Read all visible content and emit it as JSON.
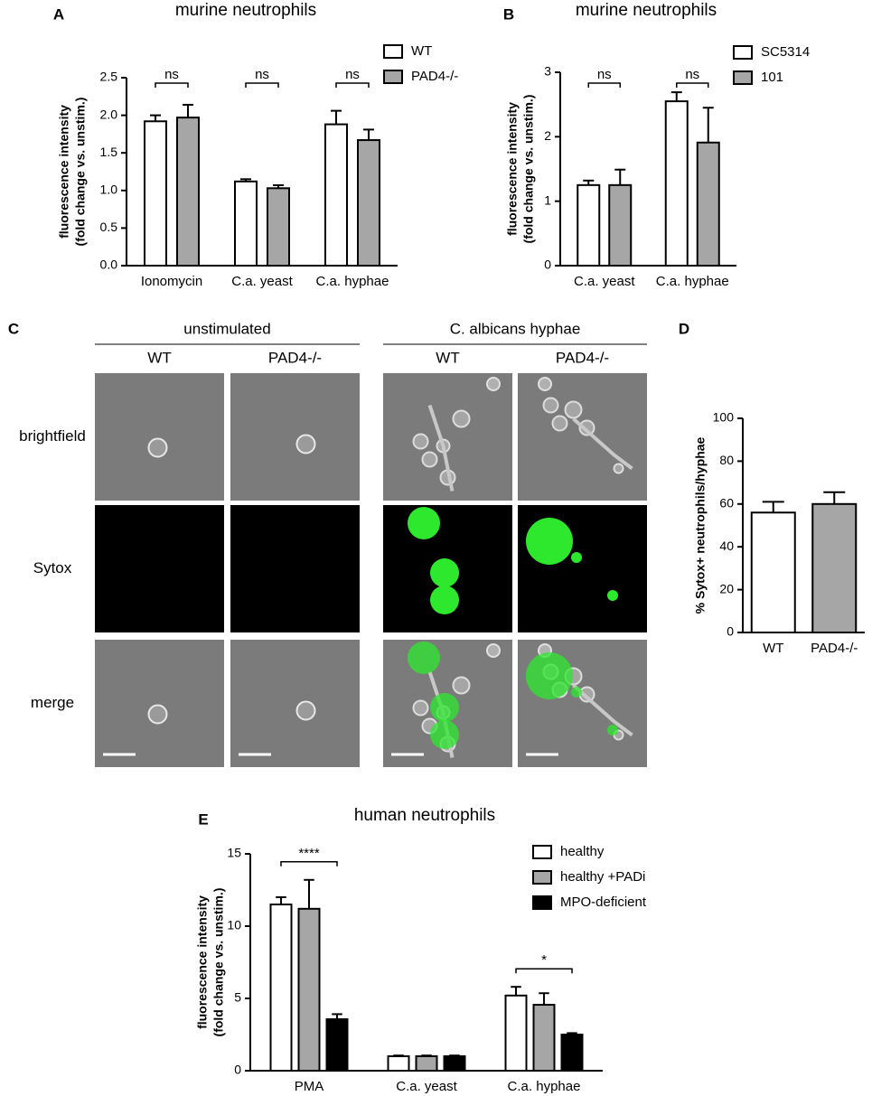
{
  "chart_data": [
    {
      "type": "bar",
      "panel": "A",
      "title": "murine neutrophils",
      "ylabel": [
        "fluorescence intensity",
        "(fold change vs. unstim.)"
      ],
      "categories": [
        "Ionomycin",
        "C.a. yeast",
        "C.a. hyphae"
      ],
      "series": [
        {
          "name": "WT",
          "color": "#ffffff",
          "values": [
            1.92,
            1.12,
            1.88
          ],
          "errors": [
            0.08,
            0.03,
            0.18
          ]
        },
        {
          "name": "PAD4-/-",
          "color": "#a6a6a6",
          "values": [
            1.97,
            1.03,
            1.67
          ],
          "errors": [
            0.17,
            0.04,
            0.14
          ]
        }
      ],
      "significance": [
        "ns",
        "ns",
        "ns"
      ],
      "ylim": [
        0,
        2.5
      ],
      "yticks": [
        {
          "value": 0,
          "label": "0.0"
        },
        0.5,
        {
          "value": 1,
          "label": "1.0"
        },
        1.5,
        {
          "value": 2,
          "label": "2.0"
        },
        2.5
      ]
    },
    {
      "type": "bar",
      "panel": "B",
      "title": "murine neutrophils",
      "ylabel": [
        "fluorescence intensity",
        "(fold change vs. unstim.)"
      ],
      "categories": [
        "C.a. yeast",
        "C.a. hyphae"
      ],
      "series": [
        {
          "name": "SC5314",
          "color": "#ffffff",
          "values": [
            1.25,
            2.55
          ],
          "errors": [
            0.07,
            0.14
          ]
        },
        {
          "name": "101",
          "color": "#a6a6a6",
          "values": [
            1.25,
            1.91
          ],
          "errors": [
            0.24,
            0.54
          ]
        }
      ],
      "significance": [
        "ns",
        "ns"
      ],
      "ylim": [
        0,
        3
      ],
      "yticks": [
        0,
        1,
        2,
        3
      ]
    },
    {
      "type": "bar",
      "panel": "D",
      "ylabel": [
        "% Sytox+ neutrophils/hyphae"
      ],
      "categories": [
        "WT",
        "PAD4-/-"
      ],
      "values": [
        56,
        60
      ],
      "errors": [
        5,
        5.5
      ],
      "colors": [
        "#ffffff",
        "#a6a6a6"
      ],
      "ylim": [
        0,
        100
      ],
      "yticks": [
        0,
        20,
        40,
        60,
        80,
        100
      ]
    },
    {
      "type": "bar",
      "panel": "E",
      "title": "human neutrophils",
      "ylabel": [
        "fluorescence intensity",
        "(fold change vs. unstim.)"
      ],
      "categories": [
        "PMA",
        "C.a. yeast",
        "C.a. hyphae"
      ],
      "series": [
        {
          "name": "healthy",
          "color": "#ffffff",
          "values": [
            11.5,
            1.0,
            5.2
          ],
          "errors": [
            0.5,
            0.05,
            0.6
          ]
        },
        {
          "name": "healthy +PADi",
          "color": "#a6a6a6",
          "values": [
            11.2,
            1.0,
            4.56
          ],
          "errors": [
            2.0,
            0.05,
            0.8
          ]
        },
        {
          "name": "MPO-deficient",
          "color": "#000000",
          "values": [
            3.56,
            1.0,
            2.5
          ],
          "errors": [
            0.35,
            0.05,
            0.1
          ]
        }
      ],
      "significance": [
        "****",
        null,
        "*"
      ],
      "ylim": [
        0,
        15
      ],
      "yticks": [
        0,
        5,
        10,
        15
      ]
    }
  ],
  "image_panel": {
    "panel": "C",
    "groups": [
      "unstimulated",
      "C. albicans hyphae"
    ],
    "columns": [
      "WT",
      "PAD4-/-",
      "WT",
      "PAD4-/-"
    ],
    "rows": [
      "brightfield",
      "Sytox",
      "merge"
    ]
  }
}
